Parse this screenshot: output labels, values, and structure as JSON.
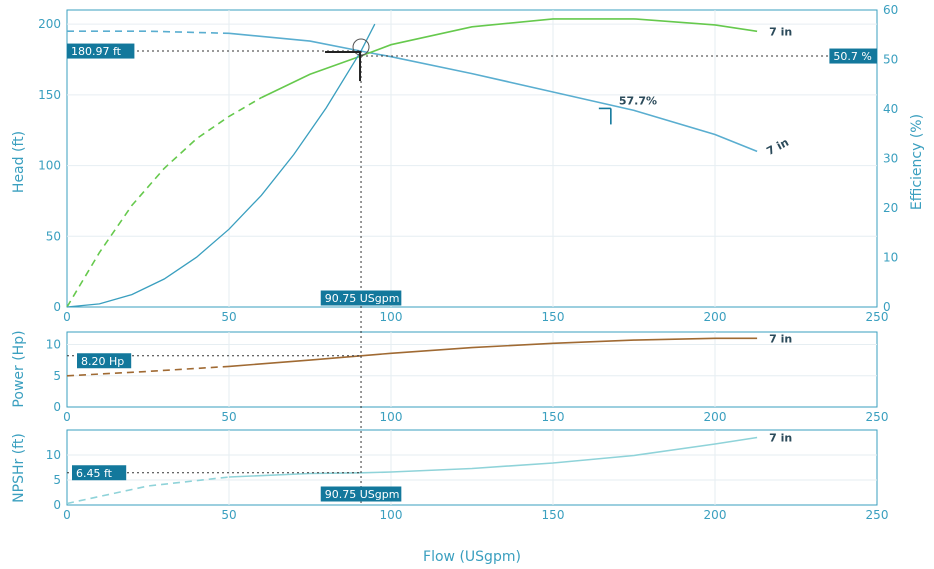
{
  "colors": {
    "axis": "#3a9fbf",
    "grid": "#e6eef2",
    "head": "#5aaed0",
    "efficiency": "#66c94d",
    "power": "#a06a33",
    "npshr": "#8fd3d9",
    "system": "#3a9fbf",
    "tag_bg": "#13789c",
    "crosshair": "#333333"
  },
  "chart_data": [
    {
      "type": "line",
      "panel": "head-efficiency",
      "xlabel": "",
      "ylabel": "Head (ft)",
      "ylabel_right": "Efficiency (%)",
      "xlim": [
        0,
        250
      ],
      "ylim": [
        0,
        210
      ],
      "ylim_right": [
        0,
        60
      ],
      "x_ticks": [
        "0",
        "50",
        "100",
        "150",
        "200",
        "250"
      ],
      "y_ticks": [
        "0",
        "50",
        "100",
        "150",
        "200"
      ],
      "y_ticks_right": [
        "0",
        "10",
        "20",
        "30",
        "40",
        "50",
        "60"
      ],
      "grid": true,
      "series": [
        {
          "key": "head",
          "axis": "left",
          "label": "7 in",
          "dashed_until": 50,
          "x": [
            0,
            25,
            50,
            75,
            90.75,
            100,
            125,
            150,
            175,
            200,
            213
          ],
          "y": [
            195,
            195,
            193.5,
            188,
            180.97,
            177,
            165,
            152,
            139,
            122,
            110
          ]
        },
        {
          "key": "efficiency",
          "axis": "right",
          "label": "7 in",
          "dashed_until": 55,
          "x": [
            0,
            10,
            20,
            30,
            40,
            50,
            60,
            75,
            90.75,
            100,
            125,
            150,
            175,
            200,
            213
          ],
          "y": [
            0,
            11,
            20.5,
            28,
            34,
            38.5,
            42.3,
            47,
            50.7,
            53,
            56.6,
            58.2,
            58.2,
            57,
            55.7
          ]
        },
        {
          "key": "system",
          "axis": "left",
          "x": [
            0,
            10,
            20,
            30,
            40,
            50,
            60,
            70,
            80,
            90.75,
            95
          ],
          "y": [
            0,
            2.2,
            8.8,
            19.8,
            35.2,
            55,
            79,
            107.8,
            140.8,
            180.97,
            200
          ]
        }
      ],
      "annotations": {
        "head_tag": "180.97 ft",
        "eff_tag": "50.7 %",
        "flow_tag": "90.75 USgpm",
        "bep_label": "57.7%",
        "bep_flow": 166,
        "bep_head": 139
      }
    },
    {
      "type": "line",
      "panel": "power",
      "ylabel": "Power (Hp)",
      "xlim": [
        0,
        250
      ],
      "ylim": [
        0,
        12
      ],
      "x_ticks": [
        "0",
        "50",
        "100",
        "150",
        "200",
        "250"
      ],
      "y_ticks": [
        "0",
        "5",
        "10"
      ],
      "grid": true,
      "series": [
        {
          "key": "power",
          "label": "7 in",
          "dashed_until": 50,
          "x": [
            0,
            25,
            50,
            75,
            90.75,
            100,
            125,
            150,
            175,
            200,
            213
          ],
          "y": [
            5.0,
            5.7,
            6.5,
            7.5,
            8.2,
            8.6,
            9.5,
            10.2,
            10.7,
            11.0,
            11.0
          ]
        }
      ],
      "annotations": {
        "power_tag": "8.20 Hp"
      }
    },
    {
      "type": "line",
      "panel": "npshr",
      "ylabel": "NPSHr (ft)",
      "xlabel": "Flow (USgpm)",
      "xlim": [
        0,
        250
      ],
      "ylim": [
        0,
        15
      ],
      "x_ticks": [
        "0",
        "50",
        "100",
        "150",
        "200",
        "250"
      ],
      "y_ticks": [
        "0",
        "5",
        "10"
      ],
      "grid": true,
      "series": [
        {
          "key": "npshr",
          "label": "7 in",
          "dashed_until": 50,
          "x": [
            0,
            25,
            50,
            75,
            90.75,
            100,
            125,
            150,
            175,
            200,
            213
          ],
          "y": [
            0.3,
            3.8,
            5.6,
            6.3,
            6.45,
            6.6,
            7.3,
            8.4,
            9.9,
            12.2,
            13.5
          ]
        }
      ],
      "annotations": {
        "npshr_tag": "6.45 ft",
        "flow_tag": "90.75 USgpm"
      }
    }
  ],
  "operating_flow": 90.75
}
